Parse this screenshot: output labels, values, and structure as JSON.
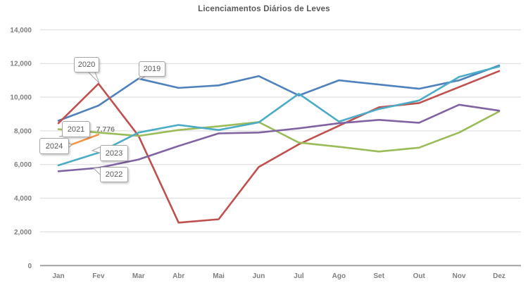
{
  "title": "Licenciamentos Diários de Leves",
  "chart_data": {
    "type": "line",
    "categories": [
      "Jan",
      "Fev",
      "Mar",
      "Abr",
      "Mai",
      "Jun",
      "Jul",
      "Ago",
      "Set",
      "Out",
      "Nov",
      "Dez"
    ],
    "ylim": [
      0,
      14000
    ],
    "ytick_step": 2000,
    "ytick_labels": [
      "0",
      "2,000",
      "4,000",
      "6,000",
      "8,000",
      "10,000",
      "12,000",
      "14,000"
    ],
    "grid": true,
    "legend_position": "callouts-on-lines",
    "series": [
      {
        "name": "2019",
        "color": "#4F81BD",
        "values": [
          8600,
          9500,
          11100,
          10550,
          10700,
          11250,
          10100,
          11000,
          10750,
          10500,
          11000,
          11880
        ]
      },
      {
        "name": "2020",
        "color": "#C0504D",
        "values": [
          8450,
          10800,
          7700,
          2550,
          2750,
          5850,
          7200,
          8300,
          9400,
          9650,
          10600,
          11550
        ]
      },
      {
        "name": "2021",
        "color": "#9BBB59",
        "values": [
          8100,
          7900,
          7700,
          8050,
          8270,
          8520,
          7300,
          7050,
          6770,
          7000,
          7900,
          9150
        ]
      },
      {
        "name": "2022",
        "color": "#8064A2",
        "values": [
          5600,
          5800,
          6300,
          7100,
          7850,
          7900,
          8150,
          8450,
          8650,
          8480,
          9550,
          9200
        ]
      },
      {
        "name": "2023",
        "color": "#4BACC6",
        "values": [
          5950,
          6700,
          7900,
          8350,
          8050,
          8500,
          10200,
          8550,
          9300,
          9800,
          11200,
          11820
        ]
      },
      {
        "name": "2024",
        "color": "#F79646",
        "values": [
          6900,
          7776,
          null,
          null,
          null,
          null,
          null,
          null,
          null,
          null,
          null,
          null
        ]
      }
    ],
    "data_label": {
      "series": "2024",
      "category": "Fev",
      "text": "7,776"
    }
  }
}
